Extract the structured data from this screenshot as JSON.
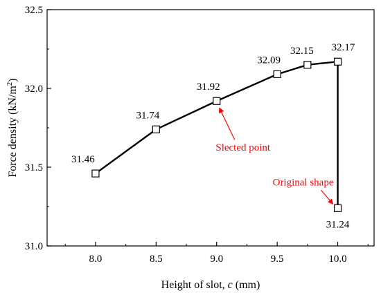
{
  "chart_data": {
    "type": "line",
    "x": [
      8.0,
      8.5,
      9.0,
      9.5,
      9.75,
      10.0,
      10.0
    ],
    "y": [
      31.46,
      31.74,
      31.92,
      32.09,
      32.15,
      32.17,
      31.24
    ],
    "data_labels": [
      "31.46",
      "31.74",
      "31.92",
      "32.09",
      "32.15",
      "32.17",
      "31.24"
    ],
    "xlabel": {
      "pre": "Height of slot, ",
      "var": "c",
      "post": " (mm)"
    },
    "ylabel": {
      "pre": "Force density (kN/m",
      "sup": "2",
      "post": ")"
    },
    "xlim": [
      7.6,
      10.3
    ],
    "ylim": [
      31.0,
      32.5
    ],
    "xticks": [
      "8.0",
      "8.5",
      "9.0",
      "9.5",
      "10.0"
    ],
    "yticks": [
      "31.0",
      "31.5",
      "32.0",
      "32.5"
    ],
    "grid": false,
    "line_color": "#000000",
    "marker": "open-square",
    "annotations": [
      {
        "text": "Slected point",
        "target_index": 2,
        "color": "#ff0000"
      },
      {
        "text": "Original shape",
        "target_index": 6,
        "color": "#ff0000"
      }
    ]
  }
}
